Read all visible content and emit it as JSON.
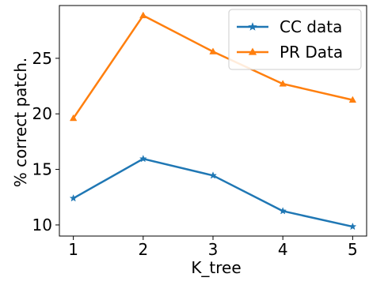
{
  "chart_data": {
    "type": "line",
    "x": [
      1,
      2,
      3,
      4,
      5
    ],
    "series": [
      {
        "name": "CC data",
        "values": [
          12.4,
          15.95,
          14.45,
          11.25,
          9.85
        ],
        "color": "#1f77b4",
        "marker": "star"
      },
      {
        "name": "PR Data",
        "values": [
          19.6,
          28.85,
          25.6,
          22.7,
          21.25
        ],
        "color": "#ff7f0e",
        "marker": "triangle"
      }
    ],
    "xlabel": "K_tree",
    "ylabel": "% correct patch.",
    "xlim": [
      0.8,
      5.2
    ],
    "ylim": [
      9.0,
      29.75
    ],
    "xticks": [
      1,
      2,
      3,
      4,
      5
    ],
    "yticks": [
      10,
      15,
      20,
      25
    ],
    "grid": false,
    "legend": {
      "placement": "top-right",
      "entries": [
        "CC data",
        "PR Data"
      ]
    }
  }
}
